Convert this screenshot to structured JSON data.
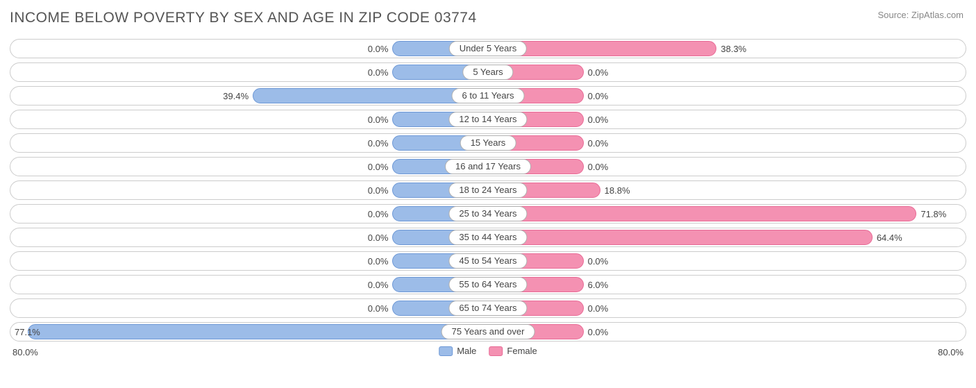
{
  "title": "INCOME BELOW POVERTY BY SEX AND AGE IN ZIP CODE 03774",
  "source": "Source: ZipAtlas.com",
  "chart": {
    "type": "butterfly-bar",
    "axis_max": 80.0,
    "axis_label_left": "80.0%",
    "axis_label_right": "80.0%",
    "min_bar_pct": 10.0,
    "colors": {
      "male_fill": "#9cbce8",
      "male_border": "#6d98d6",
      "female_fill": "#f491b2",
      "female_border": "#e86b96",
      "track_border": "#cccccc",
      "background": "#ffffff",
      "text": "#444444"
    },
    "legend": [
      {
        "label": "Male",
        "fill": "#9cbce8",
        "border": "#6d98d6"
      },
      {
        "label": "Female",
        "fill": "#f491b2",
        "border": "#e86b96"
      }
    ],
    "rows": [
      {
        "category": "Under 5 Years",
        "male": 0.0,
        "female": 38.3,
        "male_label": "0.0%",
        "female_label": "38.3%"
      },
      {
        "category": "5 Years",
        "male": 0.0,
        "female": 0.0,
        "male_label": "0.0%",
        "female_label": "0.0%"
      },
      {
        "category": "6 to 11 Years",
        "male": 39.4,
        "female": 0.0,
        "male_label": "39.4%",
        "female_label": "0.0%"
      },
      {
        "category": "12 to 14 Years",
        "male": 0.0,
        "female": 0.0,
        "male_label": "0.0%",
        "female_label": "0.0%"
      },
      {
        "category": "15 Years",
        "male": 0.0,
        "female": 0.0,
        "male_label": "0.0%",
        "female_label": "0.0%"
      },
      {
        "category": "16 and 17 Years",
        "male": 0.0,
        "female": 0.0,
        "male_label": "0.0%",
        "female_label": "0.0%"
      },
      {
        "category": "18 to 24 Years",
        "male": 0.0,
        "female": 18.8,
        "male_label": "0.0%",
        "female_label": "18.8%"
      },
      {
        "category": "25 to 34 Years",
        "male": 0.0,
        "female": 71.8,
        "male_label": "0.0%",
        "female_label": "71.8%"
      },
      {
        "category": "35 to 44 Years",
        "male": 0.0,
        "female": 64.4,
        "male_label": "0.0%",
        "female_label": "64.4%"
      },
      {
        "category": "45 to 54 Years",
        "male": 0.0,
        "female": 0.0,
        "male_label": "0.0%",
        "female_label": "0.0%"
      },
      {
        "category": "55 to 64 Years",
        "male": 0.0,
        "female": 6.0,
        "male_label": "0.0%",
        "female_label": "6.0%"
      },
      {
        "category": "65 to 74 Years",
        "male": 0.0,
        "female": 0.0,
        "male_label": "0.0%",
        "female_label": "0.0%"
      },
      {
        "category": "75 Years and over",
        "male": 77.1,
        "female": 0.0,
        "male_label": "77.1%",
        "female_label": "0.0%"
      }
    ]
  }
}
